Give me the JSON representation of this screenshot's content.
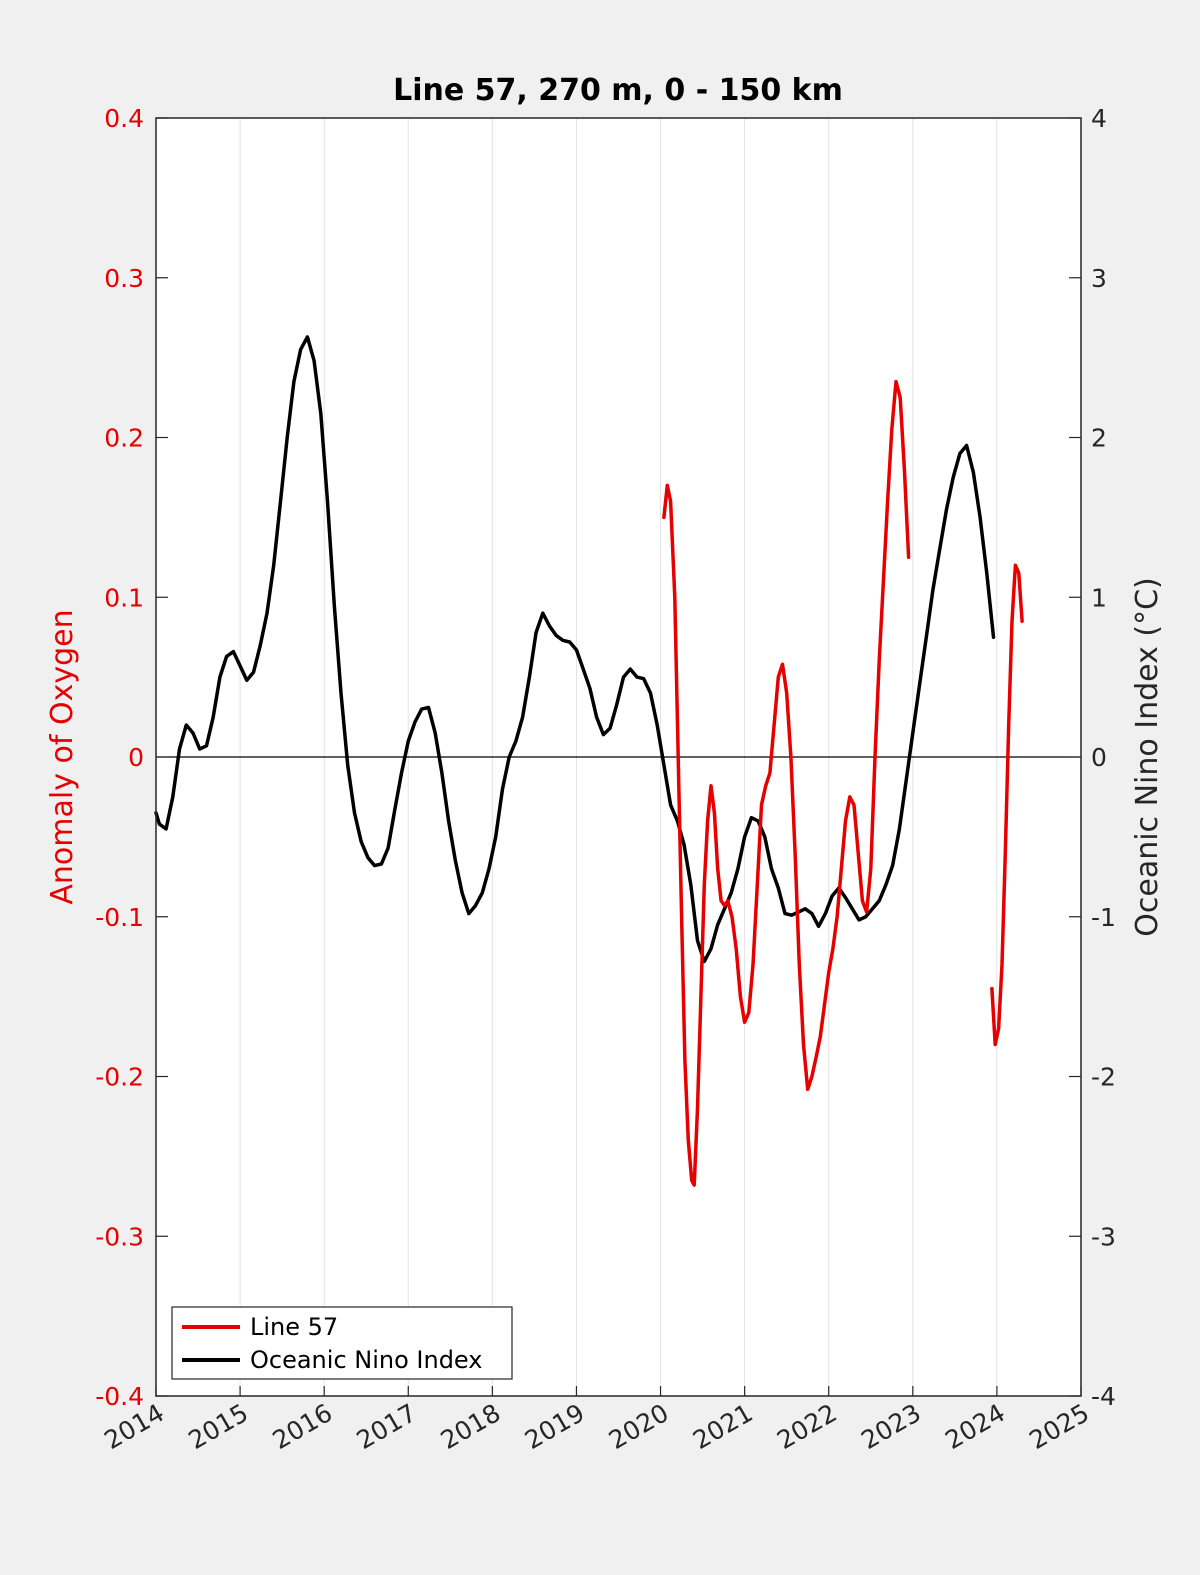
{
  "chart_data": {
    "type": "line",
    "title": "Line 57, 270 m, 0 - 150 km",
    "xlim": [
      2014,
      2025
    ],
    "xticks": [
      "2014",
      "2015",
      "2016",
      "2017",
      "2018",
      "2019",
      "2020",
      "2021",
      "2022",
      "2023",
      "2024",
      "2025"
    ],
    "ylabel_left": "Anomaly of Oxygen",
    "ylim_left": [
      -0.4,
      0.4
    ],
    "yticks_left": [
      "-0.4",
      "-0.3",
      "-0.2",
      "-0.1",
      "0",
      "0.1",
      "0.2",
      "0.3",
      "0.4"
    ],
    "ylabel_right": "Oceanic Nino Index (°C)",
    "ylim_right": [
      -4,
      4
    ],
    "yticks_right": [
      "-4",
      "-3",
      "-2",
      "-1",
      "0",
      "1",
      "2",
      "3",
      "4"
    ],
    "grid": "vertical",
    "zero_line": true,
    "legend": {
      "placement": "bottom-left",
      "entries": [
        "Line 57",
        "Oceanic Nino Index"
      ]
    },
    "series": [
      {
        "name": "Line 57",
        "axis": "left",
        "color": "#e60000",
        "segments": [
          [
            [
              2020.04,
              0.15
            ],
            [
              2020.08,
              0.17
            ],
            [
              2020.12,
              0.16
            ],
            [
              2020.17,
              0.1
            ],
            [
              2020.21,
              0.0
            ],
            [
              2020.25,
              -0.1
            ],
            [
              2020.29,
              -0.19
            ],
            [
              2020.33,
              -0.24
            ],
            [
              2020.37,
              -0.265
            ],
            [
              2020.4,
              -0.268
            ],
            [
              2020.44,
              -0.22
            ],
            [
              2020.48,
              -0.15
            ],
            [
              2020.52,
              -0.08
            ],
            [
              2020.56,
              -0.04
            ],
            [
              2020.6,
              -0.018
            ],
            [
              2020.64,
              -0.035
            ],
            [
              2020.68,
              -0.07
            ],
            [
              2020.72,
              -0.09
            ],
            [
              2020.76,
              -0.093
            ],
            [
              2020.8,
              -0.09
            ],
            [
              2020.85,
              -0.1
            ],
            [
              2020.9,
              -0.12
            ],
            [
              2020.95,
              -0.15
            ],
            [
              2021.0,
              -0.166
            ],
            [
              2021.05,
              -0.16
            ],
            [
              2021.1,
              -0.13
            ],
            [
              2021.15,
              -0.08
            ],
            [
              2021.2,
              -0.03
            ],
            [
              2021.25,
              -0.018
            ],
            [
              2021.3,
              -0.01
            ],
            [
              2021.35,
              0.02
            ],
            [
              2021.4,
              0.05
            ],
            [
              2021.45,
              0.058
            ],
            [
              2021.5,
              0.04
            ],
            [
              2021.55,
              0.0
            ],
            [
              2021.6,
              -0.06
            ],
            [
              2021.65,
              -0.13
            ],
            [
              2021.7,
              -0.18
            ],
            [
              2021.75,
              -0.208
            ],
            [
              2021.8,
              -0.2
            ],
            [
              2021.85,
              -0.188
            ],
            [
              2021.9,
              -0.175
            ],
            [
              2021.95,
              -0.155
            ],
            [
              2022.0,
              -0.135
            ],
            [
              2022.05,
              -0.12
            ],
            [
              2022.1,
              -0.1
            ],
            [
              2022.15,
              -0.07
            ],
            [
              2022.2,
              -0.04
            ],
            [
              2022.25,
              -0.025
            ],
            [
              2022.3,
              -0.03
            ],
            [
              2022.35,
              -0.06
            ],
            [
              2022.4,
              -0.09
            ],
            [
              2022.45,
              -0.097
            ],
            [
              2022.5,
              -0.07
            ],
            [
              2022.55,
              0.0
            ],
            [
              2022.6,
              0.06
            ],
            [
              2022.65,
              0.11
            ],
            [
              2022.7,
              0.16
            ],
            [
              2022.75,
              0.205
            ],
            [
              2022.8,
              0.235
            ],
            [
              2022.85,
              0.225
            ],
            [
              2022.9,
              0.18
            ],
            [
              2022.95,
              0.125
            ]
          ],
          [
            [
              2023.94,
              -0.145
            ],
            [
              2023.98,
              -0.18
            ],
            [
              2024.02,
              -0.17
            ],
            [
              2024.06,
              -0.13
            ],
            [
              2024.1,
              -0.06
            ],
            [
              2024.14,
              0.02
            ],
            [
              2024.18,
              0.085
            ],
            [
              2024.22,
              0.12
            ],
            [
              2024.26,
              0.115
            ],
            [
              2024.3,
              0.085
            ]
          ]
        ]
      },
      {
        "name": "Oceanic Nino Index",
        "axis": "right",
        "color": "#000000",
        "segments": [
          [
            [
              2014.0,
              -0.35
            ],
            [
              2014.04,
              -0.42
            ],
            [
              2014.12,
              -0.45
            ],
            [
              2014.2,
              -0.25
            ],
            [
              2014.28,
              0.05
            ],
            [
              2014.36,
              0.2
            ],
            [
              2014.44,
              0.15
            ],
            [
              2014.52,
              0.05
            ],
            [
              2014.6,
              0.07
            ],
            [
              2014.68,
              0.25
            ],
            [
              2014.76,
              0.5
            ],
            [
              2014.84,
              0.63
            ],
            [
              2014.92,
              0.66
            ],
            [
              2015.0,
              0.57
            ],
            [
              2015.08,
              0.48
            ],
            [
              2015.16,
              0.53
            ],
            [
              2015.24,
              0.7
            ],
            [
              2015.32,
              0.9
            ],
            [
              2015.4,
              1.2
            ],
            [
              2015.48,
              1.6
            ],
            [
              2015.56,
              2.0
            ],
            [
              2015.64,
              2.35
            ],
            [
              2015.72,
              2.55
            ],
            [
              2015.8,
              2.63
            ],
            [
              2015.88,
              2.48
            ],
            [
              2015.96,
              2.15
            ],
            [
              2016.04,
              1.6
            ],
            [
              2016.12,
              0.95
            ],
            [
              2016.2,
              0.4
            ],
            [
              2016.28,
              -0.05
            ],
            [
              2016.36,
              -0.35
            ],
            [
              2016.44,
              -0.53
            ],
            [
              2016.52,
              -0.63
            ],
            [
              2016.6,
              -0.68
            ],
            [
              2016.68,
              -0.67
            ],
            [
              2016.76,
              -0.57
            ],
            [
              2016.84,
              -0.33
            ],
            [
              2016.92,
              -0.1
            ],
            [
              2017.0,
              0.1
            ],
            [
              2017.08,
              0.22
            ],
            [
              2017.16,
              0.3
            ],
            [
              2017.24,
              0.31
            ],
            [
              2017.32,
              0.15
            ],
            [
              2017.4,
              -0.1
            ],
            [
              2017.48,
              -0.4
            ],
            [
              2017.56,
              -0.65
            ],
            [
              2017.64,
              -0.85
            ],
            [
              2017.72,
              -0.98
            ],
            [
              2017.8,
              -0.93
            ],
            [
              2017.88,
              -0.85
            ],
            [
              2017.96,
              -0.7
            ],
            [
              2018.04,
              -0.5
            ],
            [
              2018.12,
              -0.2
            ],
            [
              2018.2,
              0.0
            ],
            [
              2018.28,
              0.1
            ],
            [
              2018.36,
              0.25
            ],
            [
              2018.44,
              0.5
            ],
            [
              2018.52,
              0.78
            ],
            [
              2018.6,
              0.9
            ],
            [
              2018.68,
              0.82
            ],
            [
              2018.76,
              0.76
            ],
            [
              2018.84,
              0.73
            ],
            [
              2018.92,
              0.72
            ],
            [
              2019.0,
              0.67
            ],
            [
              2019.08,
              0.55
            ],
            [
              2019.16,
              0.43
            ],
            [
              2019.24,
              0.25
            ],
            [
              2019.32,
              0.14
            ],
            [
              2019.4,
              0.18
            ],
            [
              2019.48,
              0.33
            ],
            [
              2019.56,
              0.5
            ],
            [
              2019.64,
              0.55
            ],
            [
              2019.72,
              0.5
            ],
            [
              2019.8,
              0.49
            ],
            [
              2019.88,
              0.4
            ],
            [
              2019.96,
              0.2
            ],
            [
              2020.04,
              -0.05
            ],
            [
              2020.12,
              -0.3
            ],
            [
              2020.2,
              -0.4
            ],
            [
              2020.28,
              -0.55
            ],
            [
              2020.36,
              -0.8
            ],
            [
              2020.44,
              -1.15
            ],
            [
              2020.52,
              -1.28
            ],
            [
              2020.6,
              -1.2
            ],
            [
              2020.68,
              -1.05
            ],
            [
              2020.76,
              -0.95
            ],
            [
              2020.84,
              -0.85
            ],
            [
              2020.92,
              -0.7
            ],
            [
              2021.0,
              -0.5
            ],
            [
              2021.08,
              -0.38
            ],
            [
              2021.16,
              -0.4
            ],
            [
              2021.24,
              -0.5
            ],
            [
              2021.32,
              -0.7
            ],
            [
              2021.4,
              -0.82
            ],
            [
              2021.48,
              -0.98
            ],
            [
              2021.56,
              -0.99
            ],
            [
              2021.64,
              -0.97
            ],
            [
              2021.72,
              -0.95
            ],
            [
              2021.8,
              -0.98
            ],
            [
              2021.88,
              -1.06
            ],
            [
              2021.96,
              -0.98
            ],
            [
              2022.04,
              -0.87
            ],
            [
              2022.12,
              -0.82
            ],
            [
              2022.2,
              -0.88
            ],
            [
              2022.28,
              -0.95
            ],
            [
              2022.36,
              -1.02
            ],
            [
              2022.44,
              -1.0
            ],
            [
              2022.52,
              -0.95
            ],
            [
              2022.6,
              -0.9
            ],
            [
              2022.68,
              -0.8
            ],
            [
              2022.76,
              -0.68
            ],
            [
              2022.84,
              -0.45
            ],
            [
              2022.92,
              -0.15
            ],
            [
              2023.0,
              0.15
            ],
            [
              2023.08,
              0.45
            ],
            [
              2023.16,
              0.75
            ],
            [
              2023.24,
              1.05
            ],
            [
              2023.32,
              1.3
            ],
            [
              2023.4,
              1.55
            ],
            [
              2023.48,
              1.75
            ],
            [
              2023.56,
              1.9
            ],
            [
              2023.64,
              1.95
            ],
            [
              2023.72,
              1.78
            ],
            [
              2023.8,
              1.5
            ],
            [
              2023.88,
              1.15
            ],
            [
              2023.96,
              0.75
            ]
          ]
        ]
      }
    ]
  }
}
